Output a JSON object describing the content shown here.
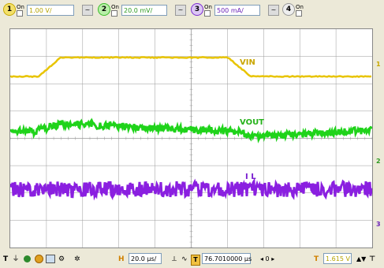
{
  "channels": [
    {
      "number": "1",
      "on_label": "On",
      "value": "1.00 V/",
      "color": "#d4b800",
      "ac_label": "~"
    },
    {
      "number": "2",
      "on_label": "On",
      "value": "20.0 mV/",
      "color": "#3bbd2a",
      "ac_label": "~"
    },
    {
      "number": "3",
      "on_label": "On",
      "value": "500 mA/",
      "color": "#7c2ed0",
      "ac_label": "~"
    },
    {
      "number": "4",
      "on_label": "On",
      "value": "",
      "color": "#666666",
      "ac_label": ""
    }
  ],
  "labels": {
    "vin": "VIN",
    "vout": "VOUT",
    "il": "I L"
  },
  "bottom": {
    "trig_icon": "T",
    "h_label": "H",
    "timebase": "20.0 µs/",
    "position_value": "76.7010000 µs",
    "t_label": "T",
    "trigger_level": "1.615 V"
  },
  "colors": {
    "vin": "#e8c400",
    "vout": "#1fd31a",
    "il": "#8a1fe0",
    "grid": "#9a9a9a",
    "screen_bg": "#ffffff"
  },
  "right_marks": {
    "ch1": "1",
    "ch2": "2",
    "ch3": "3"
  }
}
